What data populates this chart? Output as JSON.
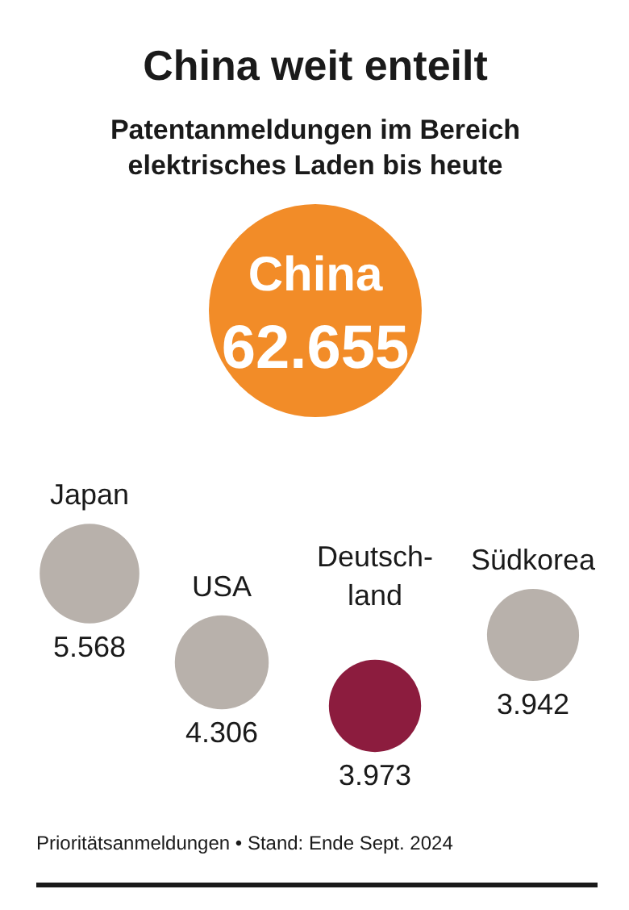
{
  "chart_data": {
    "type": "other",
    "title": "China weit enteilt",
    "subtitle": "Patentanmeldungen im Bereich elektrisches Laden bis heute",
    "categories": [
      "China",
      "Japan",
      "USA",
      "Deutsch-\nland",
      "Südkorea"
    ],
    "values": [
      62655,
      5568,
      4306,
      3973,
      3942
    ],
    "value_labels": [
      "62.655",
      "5.568",
      "4.306",
      "3.973",
      "3.942"
    ],
    "colors": [
      "#f28c28",
      "#b8b1ab",
      "#b8b1ab",
      "#8c1c3e",
      "#b8b1ab"
    ],
    "annotations": [
      "Prioritätsanmeldungen • Stand: Ende Sept. 2024"
    ]
  }
}
